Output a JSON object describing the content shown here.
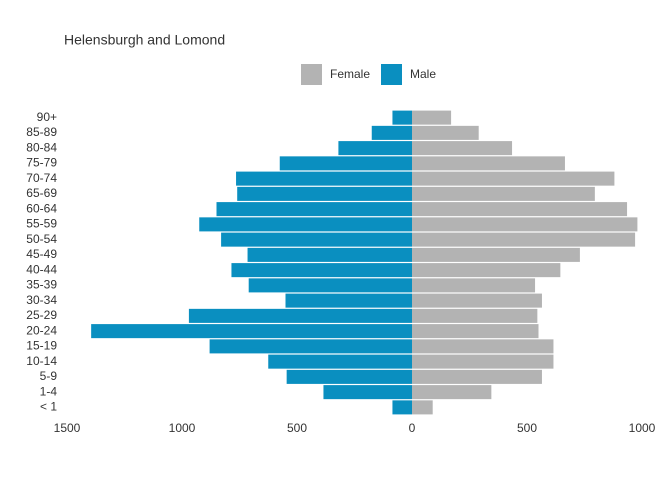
{
  "chart_data": {
    "type": "pyramid",
    "title": "Helensburgh and Lomond",
    "categories": [
      "90+",
      "85-89",
      "80-84",
      "75-79",
      "70-74",
      "65-69",
      "60-64",
      "55-59",
      "50-54",
      "45-49",
      "40-44",
      "35-39",
      "30-34",
      "25-29",
      "20-24",
      "15-19",
      "10-14",
      "5-9",
      "1-4",
      "< 1"
    ],
    "series": [
      {
        "name": "Female",
        "color": "#b3b3b3",
        "values": [
          170,
          290,
          435,
          665,
          880,
          795,
          935,
          980,
          970,
          730,
          645,
          535,
          565,
          545,
          550,
          615,
          615,
          565,
          345,
          90
        ]
      },
      {
        "name": "Male",
        "color": "#0a8fc0",
        "values": [
          -85,
          -175,
          -320,
          -575,
          -765,
          -760,
          -850,
          -925,
          -830,
          -715,
          -785,
          -710,
          -550,
          -970,
          -1395,
          -880,
          -625,
          -545,
          -385,
          -85
        ]
      }
    ],
    "xlim": [
      -1500,
      1000
    ],
    "xticks": [
      {
        "value": -1500,
        "label": "1500"
      },
      {
        "value": -1000,
        "label": "1000"
      },
      {
        "value": -500,
        "label": "500"
      },
      0,
      500,
      1000
    ],
    "legend": "top",
    "grid": false
  }
}
